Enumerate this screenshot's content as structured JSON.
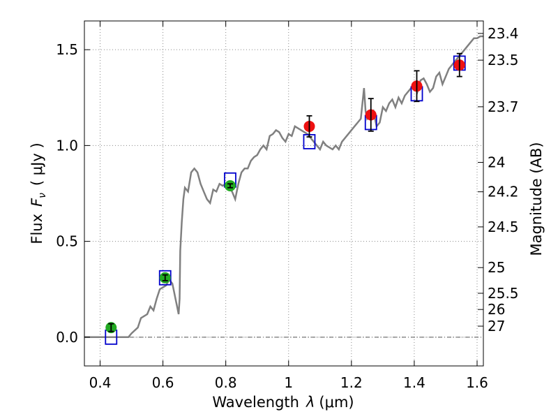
{
  "chart_data": {
    "type": "scatter",
    "xlabel_text": "Wavelength",
    "xlabel_symbol": "λ",
    "xlabel_unit": "(μm)",
    "ylabel_text": "Flux",
    "ylabel_symbol": "F",
    "ylabel_sub": "ν",
    "ylabel_unit": "( μJy )",
    "y2label": "Magnitude (AB)",
    "xlim": [
      0.35,
      1.62
    ],
    "ylim": [
      -0.15,
      1.65
    ],
    "x_ticks": [
      {
        "value": 0.4,
        "label": "0.4"
      },
      {
        "value": 0.6,
        "label": "0.6"
      },
      {
        "value": 0.8,
        "label": "0.8"
      },
      {
        "value": 1.0,
        "label": "1"
      },
      {
        "value": 1.2,
        "label": "1.2"
      },
      {
        "value": 1.4,
        "label": "1.4"
      },
      {
        "value": 1.6,
        "label": "1.6"
      }
    ],
    "y_ticks": [
      {
        "value": 0.0,
        "label": "0.0"
      },
      {
        "value": 0.5,
        "label": "0.5"
      },
      {
        "value": 1.0,
        "label": "1.0"
      },
      {
        "value": 1.5,
        "label": "1.5"
      }
    ],
    "magnitude_ticks": [
      {
        "mag": 23.4,
        "label": "23.4"
      },
      {
        "mag": 23.5,
        "label": "23.5"
      },
      {
        "mag": 23.7,
        "label": "23.7"
      },
      {
        "mag": 24.0,
        "label": "24"
      },
      {
        "mag": 24.2,
        "label": "24.2"
      },
      {
        "mag": 24.5,
        "label": "24.5"
      },
      {
        "mag": 25.0,
        "label": "25"
      },
      {
        "mag": 25.5,
        "label": "25.5"
      },
      {
        "mag": 26.0,
        "label": "26"
      },
      {
        "mag": 27.0,
        "label": "27"
      }
    ],
    "grid": true,
    "zero_line": true,
    "colors": {
      "spectrum": "#808080",
      "model_box": "#0000cc",
      "green_points": "#22aa22",
      "red_points": "#ee1111",
      "error_bar": "#000000",
      "grid": "#888888"
    },
    "series": [
      {
        "name": "template-spectrum",
        "type": "line",
        "points": [
          [
            0.35,
            0.0
          ],
          [
            0.47,
            0.0
          ],
          [
            0.49,
            0.0
          ],
          [
            0.5,
            0.02
          ],
          [
            0.52,
            0.05
          ],
          [
            0.53,
            0.1
          ],
          [
            0.55,
            0.12
          ],
          [
            0.56,
            0.16
          ],
          [
            0.57,
            0.14
          ],
          [
            0.58,
            0.2
          ],
          [
            0.59,
            0.25
          ],
          [
            0.6,
            0.26
          ],
          [
            0.61,
            0.27
          ],
          [
            0.62,
            0.3
          ],
          [
            0.63,
            0.28
          ],
          [
            0.635,
            0.24
          ],
          [
            0.64,
            0.2
          ],
          [
            0.645,
            0.16
          ],
          [
            0.65,
            0.12
          ],
          [
            0.653,
            0.2
          ],
          [
            0.655,
            0.45
          ],
          [
            0.66,
            0.6
          ],
          [
            0.665,
            0.72
          ],
          [
            0.67,
            0.78
          ],
          [
            0.68,
            0.76
          ],
          [
            0.69,
            0.86
          ],
          [
            0.7,
            0.88
          ],
          [
            0.71,
            0.86
          ],
          [
            0.72,
            0.8
          ],
          [
            0.73,
            0.76
          ],
          [
            0.74,
            0.72
          ],
          [
            0.75,
            0.7
          ],
          [
            0.76,
            0.77
          ],
          [
            0.77,
            0.76
          ],
          [
            0.78,
            0.8
          ],
          [
            0.79,
            0.79
          ],
          [
            0.8,
            0.8
          ],
          [
            0.81,
            0.78
          ],
          [
            0.82,
            0.76
          ],
          [
            0.83,
            0.72
          ],
          [
            0.84,
            0.8
          ],
          [
            0.85,
            0.86
          ],
          [
            0.86,
            0.88
          ],
          [
            0.87,
            0.88
          ],
          [
            0.88,
            0.92
          ],
          [
            0.89,
            0.94
          ],
          [
            0.9,
            0.95
          ],
          [
            0.91,
            0.98
          ],
          [
            0.92,
            1.0
          ],
          [
            0.93,
            0.98
          ],
          [
            0.94,
            1.05
          ],
          [
            0.95,
            1.06
          ],
          [
            0.96,
            1.08
          ],
          [
            0.97,
            1.07
          ],
          [
            0.98,
            1.04
          ],
          [
            0.99,
            1.02
          ],
          [
            1.0,
            1.06
          ],
          [
            1.01,
            1.05
          ],
          [
            1.02,
            1.1
          ],
          [
            1.04,
            1.08
          ],
          [
            1.06,
            1.06
          ],
          [
            1.07,
            1.04
          ],
          [
            1.08,
            1.02
          ],
          [
            1.09,
            1.0
          ],
          [
            1.1,
            0.98
          ],
          [
            1.11,
            1.02
          ],
          [
            1.12,
            1.0
          ],
          [
            1.14,
            0.98
          ],
          [
            1.15,
            1.0
          ],
          [
            1.16,
            0.98
          ],
          [
            1.17,
            1.02
          ],
          [
            1.18,
            1.04
          ],
          [
            1.19,
            1.06
          ],
          [
            1.2,
            1.08
          ],
          [
            1.21,
            1.1
          ],
          [
            1.22,
            1.12
          ],
          [
            1.23,
            1.14
          ],
          [
            1.24,
            1.3
          ],
          [
            1.245,
            1.18
          ],
          [
            1.25,
            1.14
          ],
          [
            1.26,
            1.16
          ],
          [
            1.27,
            1.18
          ],
          [
            1.28,
            1.1
          ],
          [
            1.29,
            1.12
          ],
          [
            1.3,
            1.2
          ],
          [
            1.31,
            1.18
          ],
          [
            1.32,
            1.22
          ],
          [
            1.33,
            1.24
          ],
          [
            1.34,
            1.2
          ],
          [
            1.35,
            1.25
          ],
          [
            1.36,
            1.22
          ],
          [
            1.37,
            1.26
          ],
          [
            1.38,
            1.28
          ],
          [
            1.39,
            1.3
          ],
          [
            1.4,
            1.32
          ],
          [
            1.41,
            1.28
          ],
          [
            1.42,
            1.34
          ],
          [
            1.43,
            1.35
          ],
          [
            1.44,
            1.32
          ],
          [
            1.45,
            1.28
          ],
          [
            1.46,
            1.3
          ],
          [
            1.47,
            1.36
          ],
          [
            1.48,
            1.38
          ],
          [
            1.49,
            1.32
          ],
          [
            1.5,
            1.36
          ],
          [
            1.51,
            1.4
          ],
          [
            1.52,
            1.42
          ],
          [
            1.53,
            1.44
          ],
          [
            1.54,
            1.46
          ],
          [
            1.55,
            1.48
          ],
          [
            1.56,
            1.5
          ],
          [
            1.57,
            1.52
          ],
          [
            1.58,
            1.54
          ],
          [
            1.59,
            1.56
          ],
          [
            1.6,
            1.56
          ],
          [
            1.61,
            1.57
          ],
          [
            1.62,
            1.57
          ]
        ]
      },
      {
        "name": "model-photometry",
        "type": "box",
        "points": [
          [
            0.435,
            0.0
          ],
          [
            0.607,
            0.31
          ],
          [
            0.814,
            0.82
          ],
          [
            1.066,
            1.02
          ],
          [
            1.262,
            1.12
          ],
          [
            1.408,
            1.27
          ],
          [
            1.544,
            1.43
          ]
        ]
      },
      {
        "name": "optical-photometry",
        "type": "errorbar",
        "points": [
          {
            "x": 0.435,
            "y": 0.05,
            "err": 0.02
          },
          {
            "x": 0.607,
            "y": 0.31,
            "err": 0.015
          },
          {
            "x": 0.814,
            "y": 0.79,
            "err": 0.01
          }
        ]
      },
      {
        "name": "nir-photometry",
        "type": "errorbar",
        "points": [
          {
            "x": 1.066,
            "y": 1.1,
            "err": 0.055
          },
          {
            "x": 1.262,
            "y": 1.16,
            "err": 0.085
          },
          {
            "x": 1.408,
            "y": 1.31,
            "err": 0.08
          },
          {
            "x": 1.544,
            "y": 1.42,
            "err": 0.06
          }
        ]
      }
    ]
  }
}
